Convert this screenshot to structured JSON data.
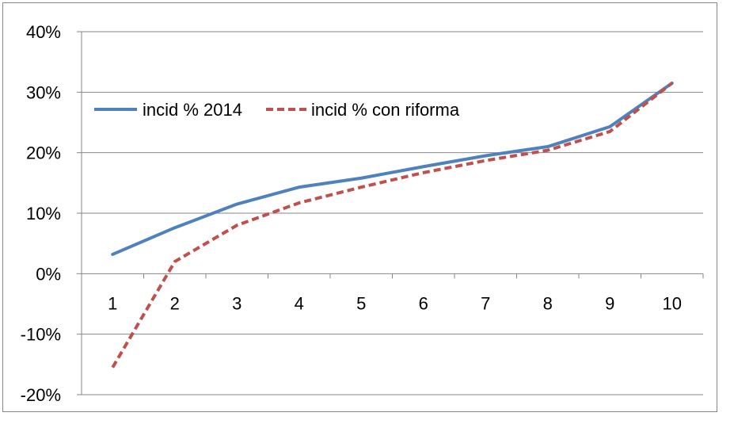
{
  "chart_data": {
    "type": "line",
    "title": "",
    "xlabel": "",
    "ylabel": "",
    "categories": [
      "1",
      "2",
      "3",
      "4",
      "5",
      "6",
      "7",
      "8",
      "9",
      "10"
    ],
    "ylim": [
      -0.2,
      0.4
    ],
    "yticks": [
      {
        "value": 0.4,
        "label": "40%"
      },
      {
        "value": 0.3,
        "label": "30%"
      },
      {
        "value": 0.2,
        "label": "20%"
      },
      {
        "value": 0.1,
        "label": "10%"
      },
      {
        "value": 0.0,
        "label": "0%"
      },
      {
        "value": -0.1,
        "label": "-10%"
      },
      {
        "value": -0.2,
        "label": "-20%"
      }
    ],
    "grid": true,
    "legend": "top-left",
    "series": [
      {
        "name": "incid % 2014",
        "color": "#4F81BD",
        "style": "solid",
        "values": [
          0.032,
          0.076,
          0.115,
          0.143,
          0.158,
          0.177,
          0.195,
          0.21,
          0.243,
          0.315
        ]
      },
      {
        "name": "incid % con riforma",
        "color": "#C0504D",
        "style": "dashed",
        "values": [
          -0.155,
          0.02,
          0.08,
          0.117,
          0.143,
          0.167,
          0.187,
          0.204,
          0.235,
          0.315
        ]
      }
    ]
  }
}
